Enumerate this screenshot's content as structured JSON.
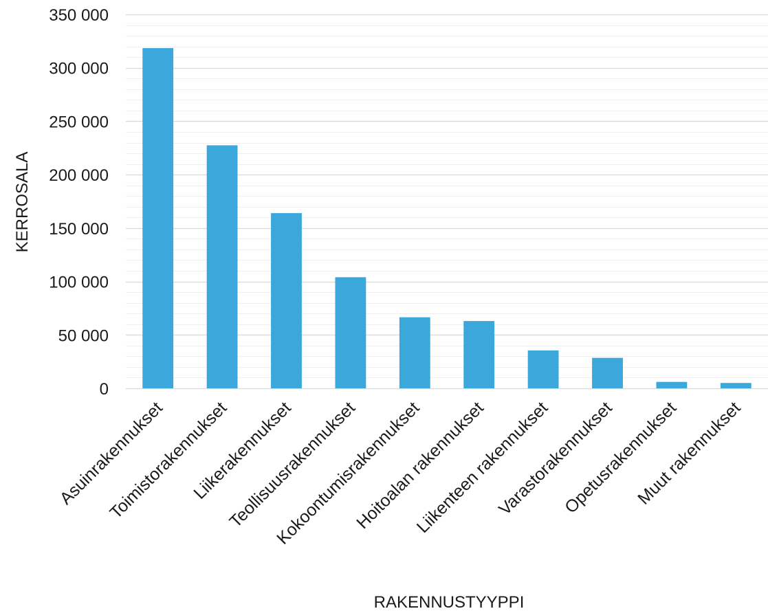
{
  "chart_data": {
    "type": "bar",
    "title": "",
    "xlabel": "RAKENNUSTYYPPI",
    "ylabel": "KERROSALA",
    "categories": [
      "Asuinrakennukset",
      "Toimistorakennukset",
      "Liikerakennukset",
      "Teollisuusrakennukset",
      "Kokoontumisrakennukset",
      "Hoitoalan rakennukset",
      "Liikenteen rakennukset",
      "Varastorakennukset",
      "Opetusrakennukset",
      "Muut rakennukset"
    ],
    "values": [
      318500,
      227500,
      164000,
      104000,
      66500,
      63000,
      35500,
      28500,
      6000,
      5000
    ],
    "ylim": [
      0,
      350000
    ],
    "yticks": [
      0,
      50000,
      100000,
      150000,
      200000,
      250000,
      300000,
      350000
    ],
    "ytick_labels": [
      "0",
      "50 000",
      "100 000",
      "150 000",
      "200 000",
      "250 000",
      "300 000",
      "350 000"
    ],
    "minor_grid_step": 10000,
    "grid": true,
    "legend": "none",
    "bar_color": "#3ca7da",
    "major_grid_color": "#d9d9d9",
    "minor_grid_color": "#efefef"
  }
}
